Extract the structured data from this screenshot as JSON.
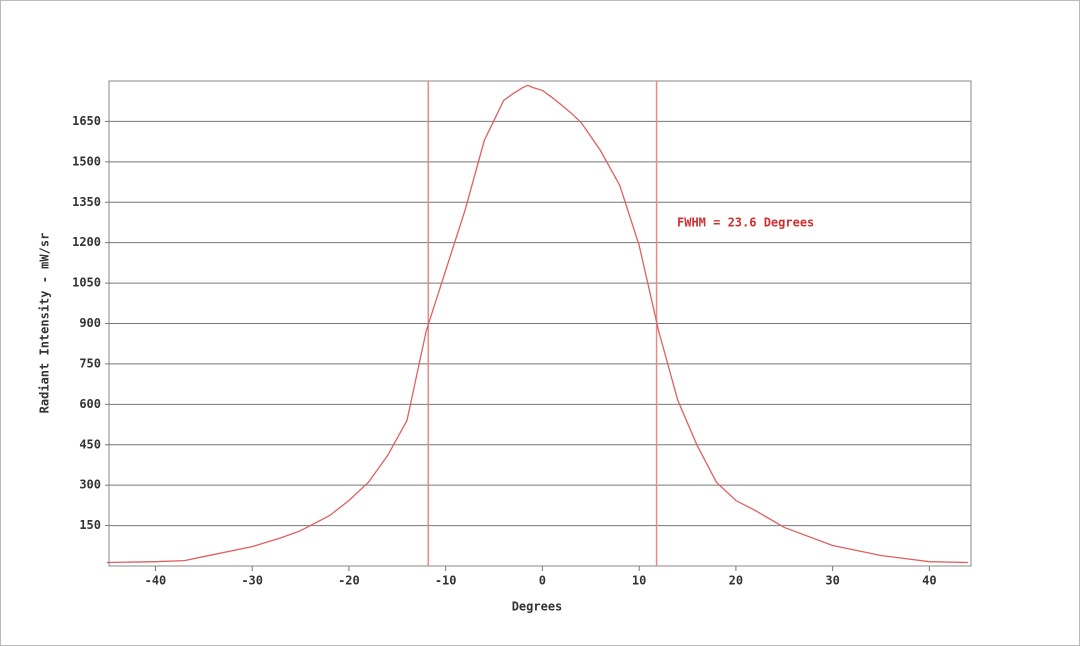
{
  "chart_data": {
    "type": "line",
    "x_label": "Degrees",
    "y_label": "Radiant Intensity - mW/sr",
    "annotation": "FWHM = 23.6 Degrees",
    "markers": [
      -11.8,
      11.8
    ],
    "marker_color": "#e88a8a",
    "x": [
      -45,
      -40,
      -37,
      -35,
      -30,
      -27,
      -25,
      -22,
      -20,
      -18,
      -16,
      -14,
      -12,
      -10,
      -8,
      -6,
      -5,
      -4,
      -3,
      -2,
      -1.5,
      -1,
      0,
      1,
      2,
      3,
      4,
      6,
      8,
      10,
      12,
      14,
      16,
      18,
      20,
      22,
      25,
      30,
      35,
      40,
      44
    ],
    "series": [
      {
        "name": "Radiant Intensity",
        "color": "#e06060",
        "values": [
          13,
          16,
          20,
          35,
          72,
          105,
          131,
          187,
          243,
          310,
          410,
          540,
          874,
          1097,
          1320,
          1580,
          1654,
          1728,
          1754,
          1776,
          1784,
          1776,
          1765,
          1739,
          1710,
          1680,
          1646,
          1542,
          1412,
          1190,
          874,
          614,
          447,
          310,
          243,
          206,
          143,
          76,
          39,
          16,
          13
        ]
      }
    ],
    "xlim": [
      -44.8,
      44.3
    ],
    "ylim": [
      0,
      1800
    ],
    "xticks": [
      -40,
      -30,
      -20,
      -10,
      0,
      10,
      20,
      30,
      40
    ],
    "yticks": [
      150,
      300,
      450,
      600,
      750,
      900,
      1050,
      1200,
      1350,
      1500,
      1650
    ],
    "grid": true
  }
}
